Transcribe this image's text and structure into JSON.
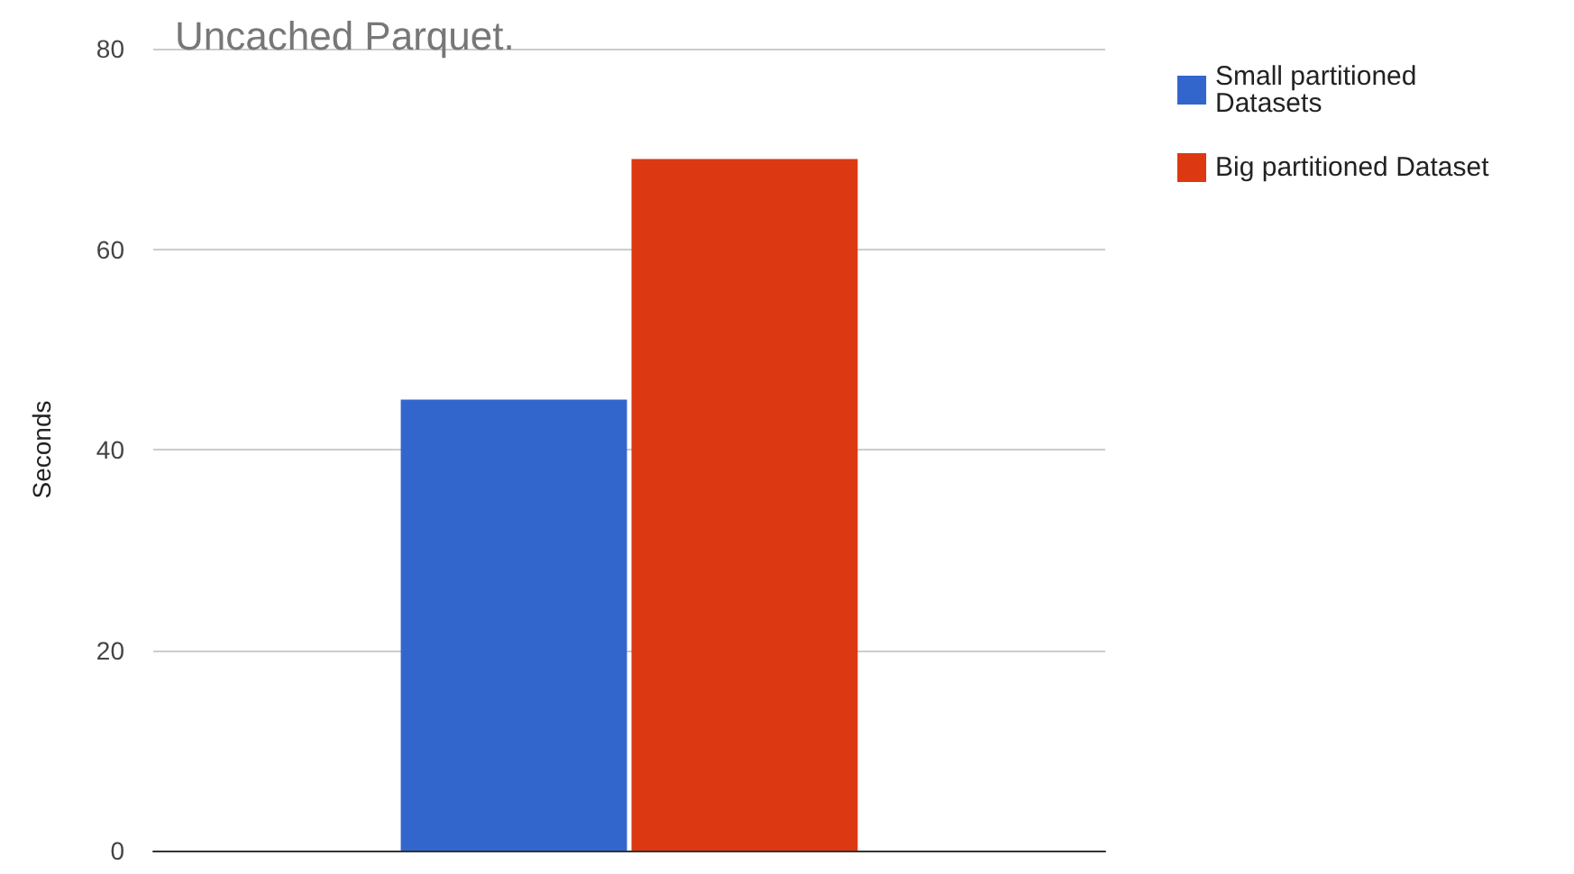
{
  "chart_data": {
    "type": "bar",
    "title": "Uncached Parquet.",
    "ylabel": "Seconds",
    "categories": [
      null
    ],
    "series": [
      {
        "name": "Small partitioned Datasets",
        "color": "#3366cc",
        "values": [
          45
        ]
      },
      {
        "name": "Big partitioned Dataset",
        "color": "#dc3912",
        "values": [
          69
        ]
      }
    ],
    "ylim": [
      0,
      80
    ],
    "yticks": [
      0,
      20,
      40,
      60,
      80
    ],
    "grid": "y",
    "legend": "right"
  }
}
